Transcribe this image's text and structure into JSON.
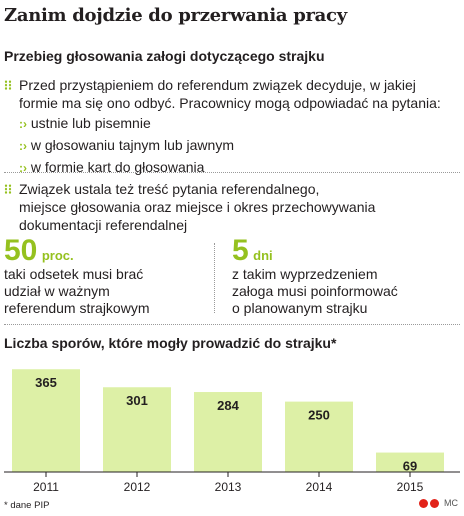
{
  "title": "Zanim dojdzie do przerwania pracy",
  "subtitle": "Przebieg głosowania załogi dotyczącego strajku",
  "block1": {
    "line1": "Przed przystąpieniem do referendum związek decyduje, w jakiej",
    "line2": "formie ma się ono odbyć. Pracownicy mogą odpowiadać na pytania:",
    "items": [
      "ustnie lub pisemnie",
      "w głosowaniu tajnym lub jawnym",
      "w formie kart do głosowania"
    ]
  },
  "block2": {
    "line1": "Związek ustala też treść pytania referendalnego,",
    "line2": "miejsce głosowania oraz miejsce i okres przechowywania",
    "line3": "dokumentacji referendalnej"
  },
  "stat1": {
    "value": "50",
    "unit": "proc.",
    "lines": [
      "taki odsetek musi brać",
      "udział w ważnym",
      "referendum strajkowym"
    ]
  },
  "stat2": {
    "value": "5",
    "unit": "dni",
    "lines": [
      "z takim wyprzedzeniem",
      "załoga musi poinformować",
      "o planowanym strajku"
    ]
  },
  "chart_title": "Liczba sporów, które mogły prowadzić do strajku*",
  "footnote": "* dane PIP",
  "logo_text": "MC",
  "colors": {
    "accent": "#95c11f",
    "bar": "#ddf0a6",
    "axis": "#231f20"
  },
  "chart_data": {
    "type": "bar",
    "categories": [
      "2011",
      "2012",
      "2013",
      "2014",
      "2015"
    ],
    "values": [
      365,
      301,
      284,
      250,
      69
    ],
    "title": "Liczba sporów, które mogły prowadzić do strajku*",
    "xlabel": "",
    "ylabel": "",
    "ylim": [
      0,
      380
    ],
    "grid": false,
    "legend": "none"
  }
}
